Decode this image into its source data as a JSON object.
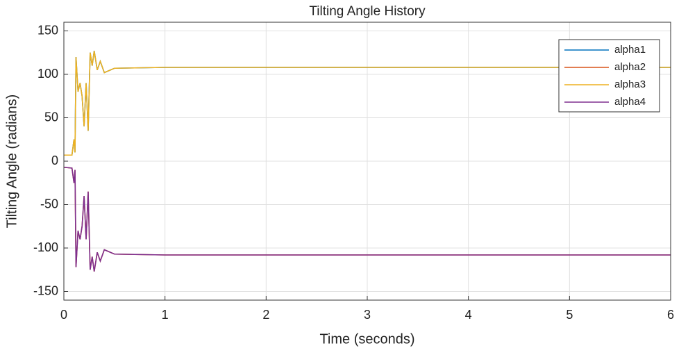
{
  "chart_data": {
    "type": "line",
    "title": "Tilting Angle History",
    "x_label": "Time (seconds)",
    "y_label": "Tilting Angle (radians)",
    "x": [
      0,
      0.08,
      0.1,
      0.11,
      0.12,
      0.14,
      0.16,
      0.18,
      0.2,
      0.22,
      0.24,
      0.26,
      0.28,
      0.3,
      0.33,
      0.36,
      0.4,
      0.5,
      1,
      3,
      6
    ],
    "series": [
      {
        "name": "alpha1",
        "color": "#0072bd",
        "values": [
          7,
          7,
          25,
          10,
          120,
          80,
          90,
          75,
          40,
          90,
          35,
          125,
          110,
          127,
          105,
          115,
          102,
          107,
          108,
          108,
          108
        ]
      },
      {
        "name": "alpha2",
        "color": "#d95319",
        "values": [
          -7,
          -8,
          -25,
          -10,
          -122,
          -80,
          -90,
          -75,
          -40,
          -90,
          -35,
          -125,
          -110,
          -127,
          -105,
          -115,
          -102,
          -107,
          -108,
          -108,
          -108
        ]
      },
      {
        "name": "alpha3",
        "color": "#edb120",
        "values": [
          7,
          7,
          25,
          10,
          120,
          80,
          90,
          75,
          40,
          90,
          35,
          125,
          110,
          127,
          105,
          115,
          102,
          107,
          108,
          108,
          108
        ]
      },
      {
        "name": "alpha4",
        "color": "#7e2f8e",
        "values": [
          -7,
          -8,
          -25,
          -10,
          -122,
          -80,
          -90,
          -75,
          -40,
          -90,
          -35,
          -125,
          -110,
          -127,
          -105,
          -115,
          -102,
          -107,
          -108,
          -108,
          -108
        ]
      }
    ],
    "xlim": [
      0,
      6
    ],
    "xticks": [
      0,
      1,
      2,
      3,
      4,
      5,
      6
    ],
    "ylim": [
      -160,
      160
    ],
    "yticks": [
      -150,
      -100,
      -50,
      0,
      50,
      100,
      150
    ],
    "grid": true,
    "legend": "upper right"
  }
}
